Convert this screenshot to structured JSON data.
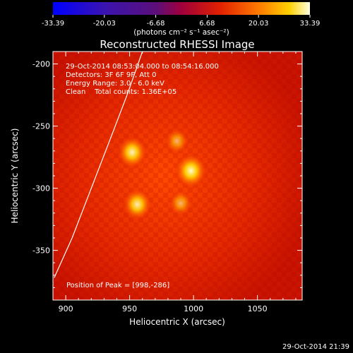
{
  "chart_data": {
    "type": "heatmap",
    "title": "Reconstructed RHESSI Image",
    "xlabel": "Heliocentric X (arcsec)",
    "ylabel": "Heliocentric Y (arcsec)",
    "xlim": [
      890,
      1085
    ],
    "ylim": [
      -390,
      -190
    ],
    "xticks": [
      "900",
      "950",
      "1000",
      "1050"
    ],
    "xtick_values": [
      900,
      950,
      1000,
      1050
    ],
    "yticks": [
      "-200",
      "-250",
      "-300",
      "-350"
    ],
    "ytick_values": [
      -200,
      -250,
      -300,
      -350
    ],
    "colorbar": {
      "tick_labels": [
        "-33.39",
        "-20.03",
        "-6.68",
        "6.68",
        "20.03",
        "33.39"
      ],
      "min": -33.39,
      "max": 33.39,
      "unit_label": "(photons cm⁻² s⁻¹ asec⁻²)"
    },
    "annotations": [
      "29-Oct-2014 08:53:04.000 to 08:54:16.000",
      "Detectors: 3F 6F 9F, Att 0",
      "Energy Range: 3.0 - 6.0 keV",
      "Clean    Total counts: 1.36E+05"
    ],
    "peak_label": "Position of Peak = [998,-286]",
    "sources": [
      {
        "x": 952,
        "y": -271,
        "intensity": 0.85
      },
      {
        "x": 998,
        "y": -286,
        "intensity": 1.0
      },
      {
        "x": 956,
        "y": -313,
        "intensity": 0.8
      },
      {
        "x": 987,
        "y": -262,
        "intensity": 0.35
      },
      {
        "x": 990,
        "y": -312,
        "intensity": 0.35
      }
    ],
    "limb_curve": [
      [
        891,
        -372
      ],
      [
        905,
        -340
      ],
      [
        920,
        -300
      ],
      [
        935,
        -260
      ],
      [
        948,
        -225
      ],
      [
        960,
        -190
      ]
    ],
    "timestamp": "29-Oct-2014 21:39"
  }
}
